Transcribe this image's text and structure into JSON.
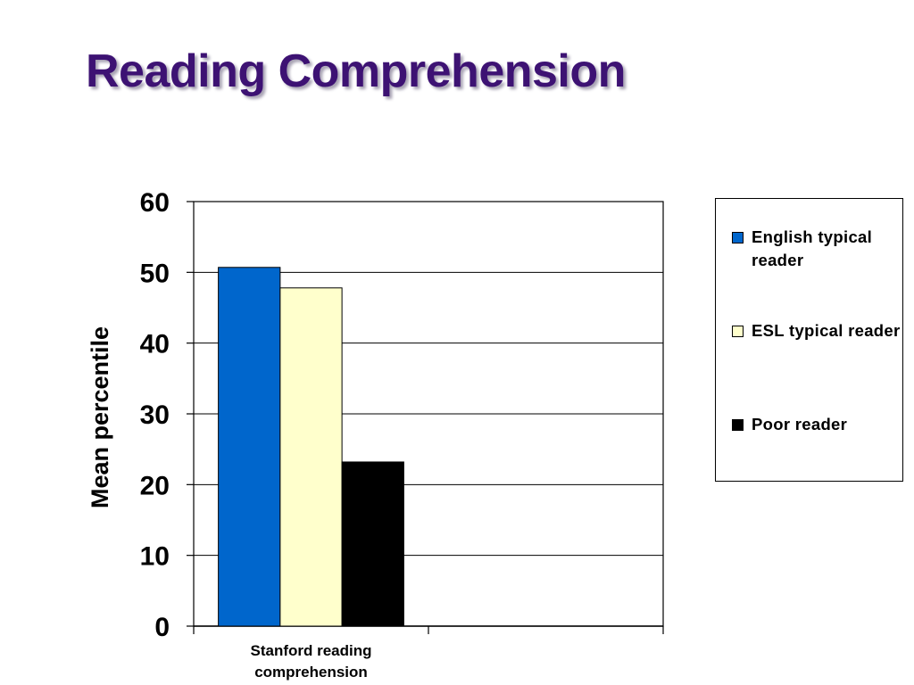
{
  "slide": {
    "title": "Reading Comprehension"
  },
  "chart_data": {
    "type": "bar",
    "title": "",
    "xlabel": "",
    "ylabel": "Mean percentile",
    "categories": [
      "Stanford reading comprehension"
    ],
    "category_slots": 2,
    "ylim": [
      0,
      60
    ],
    "yticks": [
      0,
      10,
      20,
      30,
      40,
      50,
      60
    ],
    "grid": true,
    "legend_position": "right",
    "series": [
      {
        "name": "English typical reader",
        "color": "#0066cc",
        "values": [
          50.7
        ]
      },
      {
        "name": "ESL typical reader",
        "color": "#ffffcc",
        "values": [
          47.8
        ]
      },
      {
        "name": "Poor reader",
        "color": "#000000",
        "values": [
          23.2
        ]
      }
    ]
  }
}
